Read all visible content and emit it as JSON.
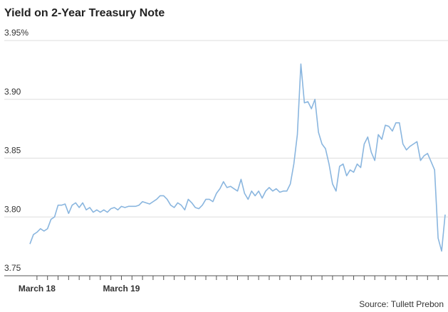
{
  "chart_data": {
    "type": "line",
    "title": "Yield on 2-Year Treasury Note",
    "source": "Source: Tullett Prebon",
    "categories": [
      null,
      null,
      "March 18",
      null,
      null,
      null,
      null,
      null,
      null,
      null,
      null,
      null,
      null,
      null,
      null,
      null,
      null,
      null,
      null,
      null,
      null,
      null,
      null,
      null,
      null,
      null,
      "March 19",
      null,
      null,
      null,
      null,
      null,
      null,
      null,
      null,
      null,
      null,
      null,
      null,
      null,
      null,
      null,
      null,
      null,
      null,
      null,
      null,
      null,
      null,
      null,
      null,
      null,
      null,
      null,
      null,
      null,
      null,
      null,
      null,
      null,
      null,
      null,
      null,
      null,
      null,
      null,
      null,
      null,
      null,
      null,
      null,
      null,
      null,
      null,
      null,
      null,
      null,
      null,
      null,
      null,
      null,
      null,
      null,
      null,
      null,
      null,
      null,
      null,
      null,
      null,
      null,
      null,
      null,
      null,
      null,
      null,
      null,
      null,
      null,
      null,
      null,
      null,
      null,
      null,
      null,
      null,
      null,
      null,
      null,
      null,
      null,
      null,
      null,
      null,
      null,
      null,
      null,
      null,
      null
    ],
    "series": [
      {
        "color": "#8ab6df",
        "values": [
          3.777,
          3.785,
          3.787,
          3.79,
          3.788,
          3.79,
          3.798,
          3.8,
          3.81,
          3.81,
          3.811,
          3.803,
          3.81,
          3.812,
          3.808,
          3.812,
          3.806,
          3.808,
          3.804,
          3.806,
          3.804,
          3.806,
          3.804,
          3.807,
          3.808,
          3.806,
          3.809,
          3.808,
          3.809,
          3.809,
          3.809,
          3.81,
          3.813,
          3.812,
          3.811,
          3.813,
          3.815,
          3.818,
          3.818,
          3.815,
          3.81,
          3.808,
          3.812,
          3.81,
          3.806,
          3.815,
          3.812,
          3.808,
          3.807,
          3.81,
          3.815,
          3.815,
          3.813,
          3.82,
          3.824,
          3.83,
          3.825,
          3.826,
          3.824,
          3.822,
          3.832,
          3.82,
          3.815,
          3.822,
          3.818,
          3.822,
          3.816,
          3.822,
          3.825,
          3.822,
          3.824,
          3.821,
          3.822,
          3.822,
          3.828,
          3.845,
          3.87,
          3.93,
          3.897,
          3.898,
          3.892,
          3.9,
          3.872,
          3.862,
          3.858,
          3.845,
          3.828,
          3.822,
          3.843,
          3.845,
          3.835,
          3.84,
          3.838,
          3.845,
          3.842,
          3.862,
          3.868,
          3.855,
          3.848,
          3.87,
          3.866,
          3.878,
          3.877,
          3.873,
          3.88,
          3.88,
          3.862,
          3.857,
          3.86,
          3.862,
          3.864,
          3.848,
          3.852,
          3.854,
          3.847,
          3.84,
          3.782,
          3.771,
          3.802
        ]
      }
    ],
    "ylim": [
      3.75,
      3.95
    ],
    "yticks": [
      3.75,
      {
        "value": 3.8,
        "label": "3.80"
      },
      3.85,
      {
        "value": 3.9,
        "label": "3.90"
      },
      {
        "value": 3.95,
        "label": "3.95%"
      }
    ],
    "grid": true
  }
}
